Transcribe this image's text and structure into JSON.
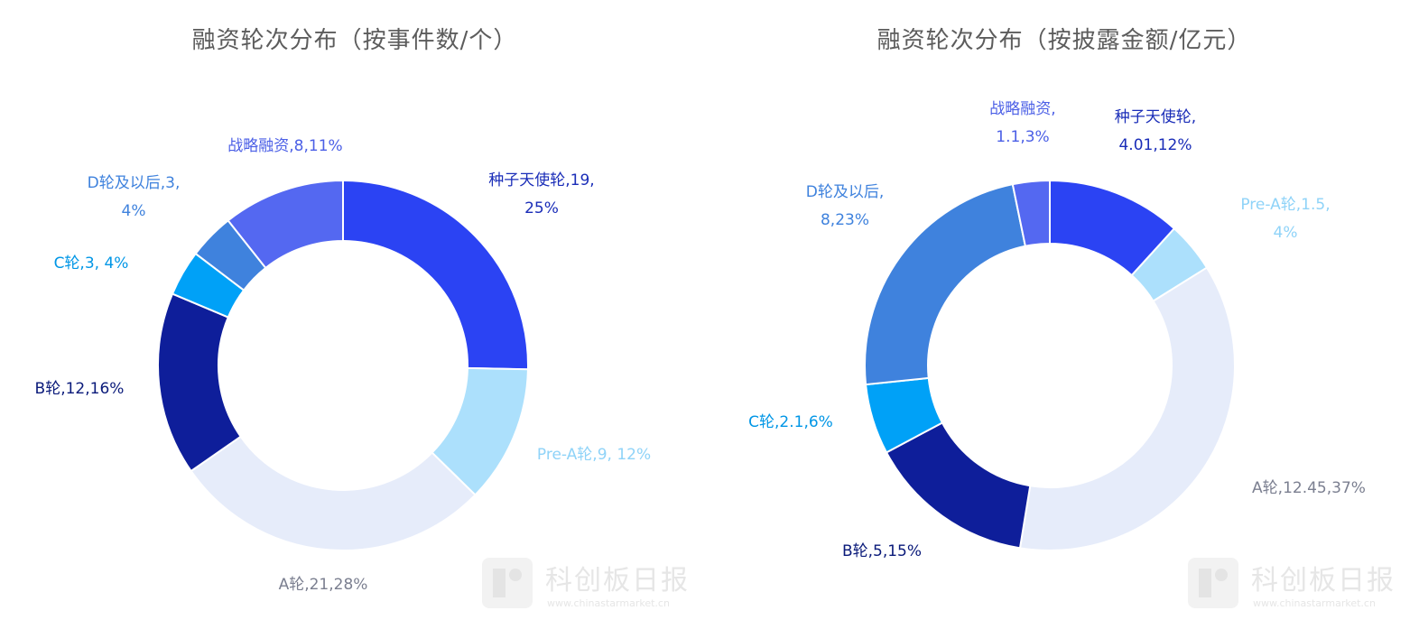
{
  "chart_data": [
    {
      "type": "pie",
      "title": "融资轮次分布（按事件数/个）",
      "donut": true,
      "categories": [
        "种子天使轮",
        "Pre-A轮",
        "A轮",
        "B轮",
        "C轮",
        "D轮及以后",
        "战略融资"
      ],
      "values": [
        19,
        9,
        21,
        12,
        3,
        3,
        8
      ],
      "percents": [
        "25%",
        "12%",
        "28%",
        "16%",
        "4%",
        "4%",
        "11%"
      ],
      "colors": [
        "#2b43f3",
        "#ace0fc",
        "#e6ecfa",
        "#0e1e9a",
        "#00a1f7",
        "#3f82dd",
        "#5468f1"
      ],
      "label_colors": [
        "#1a2db8",
        "#8fd3f8",
        "#7b7f90",
        "#0a1a7a",
        "#0096e6",
        "#3f82dd",
        "#4b5fe6"
      ],
      "data_labels": [
        [
          "种子天使轮,19,",
          "25%"
        ],
        [
          "Pre-A轮,9, 12%"
        ],
        [
          "A轮,21,28%"
        ],
        [
          "B轮,12,16%"
        ],
        [
          "C轮,3, 4%"
        ],
        [
          "D轮及以后,3,",
          "4%"
        ],
        [
          "战略融资,8,11%"
        ]
      ]
    },
    {
      "type": "pie",
      "title": "融资轮次分布（按披露金额/亿元）",
      "donut": true,
      "categories": [
        "种子天使轮",
        "Pre-A轮",
        "A轮",
        "B轮",
        "C轮",
        "D轮及以后",
        "战略融资"
      ],
      "values": [
        4.01,
        1.5,
        12.45,
        5,
        2.1,
        8,
        1.1
      ],
      "percents": [
        "12%",
        "4%",
        "37%",
        "15%",
        "6%",
        "23%",
        "3%"
      ],
      "colors": [
        "#2b43f3",
        "#ace0fc",
        "#e6ecfa",
        "#0e1e9a",
        "#00a1f7",
        "#3f82dd",
        "#5468f1"
      ],
      "label_colors": [
        "#1a2db8",
        "#8fd3f8",
        "#7b7f90",
        "#0a1a7a",
        "#0096e6",
        "#3f82dd",
        "#4b5fe6"
      ],
      "data_labels": [
        [
          "种子天使轮,",
          "4.01,12%"
        ],
        [
          "Pre-A轮,1.5,",
          "4%"
        ],
        [
          "A轮,12.45,37%"
        ],
        [
          "B轮,5,15%"
        ],
        [
          "C轮,2.1,6%"
        ],
        [
          "D轮及以后,",
          "8,23%"
        ],
        [
          "战略融资,",
          "1.1,3%"
        ]
      ]
    }
  ],
  "watermark": {
    "name": "科创板日报",
    "url": "www.chinastarmarket.cn"
  }
}
